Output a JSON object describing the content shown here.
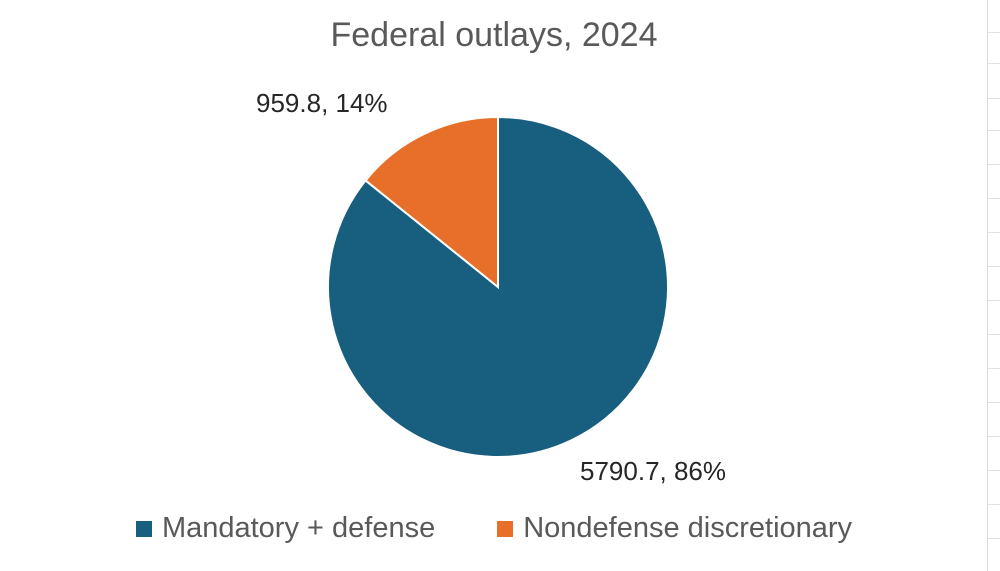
{
  "chart_data": {
    "type": "pie",
    "title": "Federal outlays, 2024",
    "slices": [
      {
        "name": "Mandatory + defense",
        "value": 5790.7,
        "percent": "86%",
        "label": "5790.7, 86%",
        "color": "#175e7f"
      },
      {
        "name": "Nondefense discretionary",
        "value": 959.8,
        "percent": "14%",
        "label": "959.8, 14%",
        "color": "#e76f2a"
      }
    ],
    "legend_position": "bottom"
  }
}
